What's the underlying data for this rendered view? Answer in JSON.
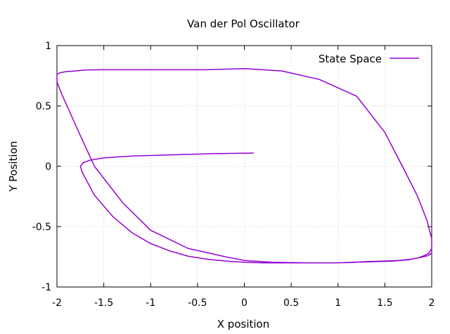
{
  "chart_data": {
    "type": "line",
    "title": "Van der Pol Oscillator",
    "xlabel": "X position",
    "ylabel": "Y Position",
    "xlim": [
      -2,
      2
    ],
    "ylim": [
      -1,
      1
    ],
    "x_ticks": [
      -2,
      -1.5,
      -1,
      -0.5,
      0,
      0.5,
      1,
      1.5,
      2
    ],
    "x_tick_labels": [
      "-2",
      "-1.5",
      "-1",
      "-0.5",
      "0",
      "0.5",
      "1",
      "1.5",
      "2"
    ],
    "y_ticks": [
      -1,
      -0.5,
      0,
      0.5,
      1
    ],
    "y_tick_labels": [
      "-1",
      "-0.5",
      "0",
      "0.5",
      "1"
    ],
    "grid": true,
    "legend_position": "top-right",
    "series": [
      {
        "name": "State Space",
        "color": "#9400d3",
        "x": [
          0.1,
          -0.3,
          -0.8,
          -1.2,
          -1.5,
          -1.65,
          -1.72,
          -1.75,
          -1.73,
          -1.6,
          -1.4,
          -1.2,
          -1.0,
          -0.8,
          -0.6,
          -0.4,
          -0.2,
          0.0,
          0.2,
          0.4,
          0.6,
          0.8,
          1.0,
          1.2,
          1.4,
          1.6,
          1.75,
          1.85,
          1.92,
          1.97,
          2.0,
          2.0,
          1.95,
          1.85,
          1.7,
          1.5,
          1.2,
          0.8,
          0.4,
          0.0,
          -0.4,
          -0.8,
          -1.2,
          -1.5,
          -1.7,
          -1.8,
          -1.9,
          -1.97,
          -2.0,
          -2.0,
          -1.95,
          -1.8,
          -1.6,
          -1.3,
          -1.0,
          -0.6,
          -0.2,
          0.0,
          0.3,
          0.7,
          1.0,
          1.3,
          1.5,
          1.65,
          1.78,
          1.88,
          1.96,
          2.0,
          2.0
        ],
        "y": [
          0.11,
          0.105,
          0.095,
          0.085,
          0.07,
          0.05,
          0.03,
          0.0,
          -0.05,
          -0.24,
          -0.42,
          -0.55,
          -0.64,
          -0.7,
          -0.745,
          -0.77,
          -0.785,
          -0.795,
          -0.8,
          -0.8,
          -0.8,
          -0.8,
          -0.8,
          -0.795,
          -0.79,
          -0.785,
          -0.775,
          -0.76,
          -0.74,
          -0.72,
          -0.68,
          -0.6,
          -0.45,
          -0.25,
          -0.02,
          0.28,
          0.58,
          0.72,
          0.79,
          0.81,
          0.8,
          0.8,
          0.8,
          0.8,
          0.798,
          0.79,
          0.785,
          0.775,
          0.76,
          0.7,
          0.6,
          0.34,
          0.0,
          -0.3,
          -0.53,
          -0.68,
          -0.75,
          -0.78,
          -0.795,
          -0.8,
          -0.8,
          -0.79,
          -0.785,
          -0.78,
          -0.77,
          -0.755,
          -0.74,
          -0.72,
          -0.69
        ]
      }
    ]
  }
}
